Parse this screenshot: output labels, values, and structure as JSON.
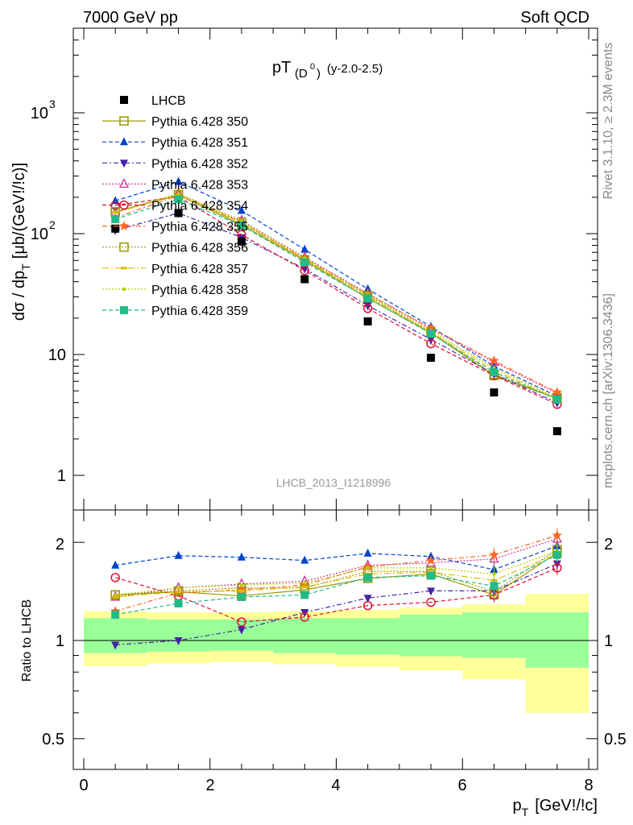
{
  "header": {
    "left": "7000 GeV pp",
    "right": "Soft QCD"
  },
  "side_labels": {
    "rivet": "Rivet 3.1.10, ≥ 2.3M events",
    "mcplots": "mcplots.cern.ch [arXiv:1306.3436]"
  },
  "analysis_label": "LHCB_2013_I1218996",
  "chart_data": {
    "type": "scatter",
    "title_main": "pT",
    "title_sub": "(D",
    "title_sup": "0",
    "title_end": ")",
    "title_range": "(y-2.0-2.5)",
    "xlabel": "p",
    "xlabel_sub": "T",
    "xlabel_unit": "[GeV!/!c]",
    "ylabel_main": "dσ / dp",
    "ylabel_sub": "T",
    "ylabel_unit": "[μb/(GeV!/!c)]",
    "ratio_ylabel": "Ratio to LHCB",
    "x_ticks": [
      "0",
      "2",
      "4",
      "6",
      "8"
    ],
    "y_ticks": [
      "1",
      "10",
      "10^2",
      "10^3"
    ],
    "ratio_ticks": [
      "0.5",
      "1",
      "2"
    ],
    "xlim": [
      -0.3,
      8.0
    ],
    "ylim": [
      0.6,
      5000
    ],
    "ratio_ylim": [
      0.42,
      2.35
    ],
    "yscale": "log",
    "x": [
      0.5,
      1.5,
      2.5,
      3.5,
      4.5,
      5.5,
      6.5,
      7.5
    ],
    "bin_edges": [
      0,
      1,
      2,
      3,
      4,
      5,
      6,
      7,
      8
    ],
    "data": {
      "name": "LHCB",
      "color": "#000000",
      "values": [
        110,
        148,
        86,
        42,
        18.8,
        9.4,
        4.85,
        2.32
      ]
    },
    "band_inner": [
      [
        0.915,
        1.17
      ],
      [
        0.925,
        1.16
      ],
      [
        0.93,
        1.16
      ],
      [
        0.915,
        1.17
      ],
      [
        0.905,
        1.17
      ],
      [
        0.895,
        1.2
      ],
      [
        0.885,
        1.22
      ],
      [
        0.825,
        1.22
      ]
    ],
    "band_outer": [
      [
        0.835,
        1.23
      ],
      [
        0.85,
        1.22
      ],
      [
        0.86,
        1.22
      ],
      [
        0.845,
        1.23
      ],
      [
        0.83,
        1.24
      ],
      [
        0.81,
        1.26
      ],
      [
        0.76,
        1.29
      ],
      [
        0.6,
        1.39
      ]
    ],
    "series": [
      {
        "name": "Pythia 6.428 350",
        "color": "#999900",
        "marker": "square-open",
        "dash": "",
        "ratio": [
          1.38,
          1.41,
          1.37,
          1.43,
          1.55,
          1.6,
          1.38,
          1.86
        ]
      },
      {
        "name": "Pythia 6.428 351",
        "color": "#0044cc",
        "marker": "triangle-up",
        "dash": "5,3",
        "ratio": [
          1.7,
          1.82,
          1.8,
          1.76,
          1.85,
          1.81,
          1.65,
          1.95
        ]
      },
      {
        "name": "Pythia 6.428 352",
        "color": "#4422aa",
        "marker": "triangle-down",
        "dash": "6,3,2,3",
        "ratio": [
          0.97,
          1.0,
          1.08,
          1.22,
          1.35,
          1.42,
          1.42,
          1.72
        ]
      },
      {
        "name": "Pythia 6.428 353",
        "color": "#cc3399",
        "marker": "triangle-open",
        "dash": "2,2",
        "ratio": [
          1.36,
          1.45,
          1.49,
          1.52,
          1.7,
          1.73,
          1.78,
          2.05
        ]
      },
      {
        "name": "Pythia 6.428 354",
        "color": "#dd1133",
        "marker": "circle-open",
        "dash": "5,3",
        "ratio": [
          1.56,
          1.37,
          1.14,
          1.18,
          1.28,
          1.31,
          1.38,
          1.67
        ]
      },
      {
        "name": "Pythia 6.428 355",
        "color": "#ff6622",
        "marker": "star",
        "dash": "6,3,2,3",
        "ratio": [
          1.23,
          1.4,
          1.43,
          1.48,
          1.68,
          1.76,
          1.83,
          2.1
        ]
      },
      {
        "name": "Pythia 6.428 356",
        "color": "#999900",
        "marker": "square-open",
        "dash": "2,2",
        "ratio": [
          1.38,
          1.42,
          1.45,
          1.45,
          1.63,
          1.63,
          1.41,
          1.9
        ]
      },
      {
        "name": "Pythia 6.428 357",
        "color": "#ddbb00",
        "marker": "dash",
        "dash": "8,3,2,3",
        "ratio": [
          1.36,
          1.41,
          1.42,
          1.46,
          1.6,
          1.62,
          1.53,
          1.84
        ]
      },
      {
        "name": "Pythia 6.428 358",
        "color": "#bbcc00",
        "marker": "dot",
        "dash": "2,2",
        "ratio": [
          1.38,
          1.45,
          1.48,
          1.5,
          1.67,
          1.67,
          1.6,
          1.88
        ]
      },
      {
        "name": "Pythia 6.428 359",
        "color": "#22bb88",
        "marker": "square",
        "dash": "5,3",
        "ratio": [
          1.2,
          1.3,
          1.36,
          1.38,
          1.56,
          1.58,
          1.47,
          1.83
        ]
      }
    ]
  }
}
